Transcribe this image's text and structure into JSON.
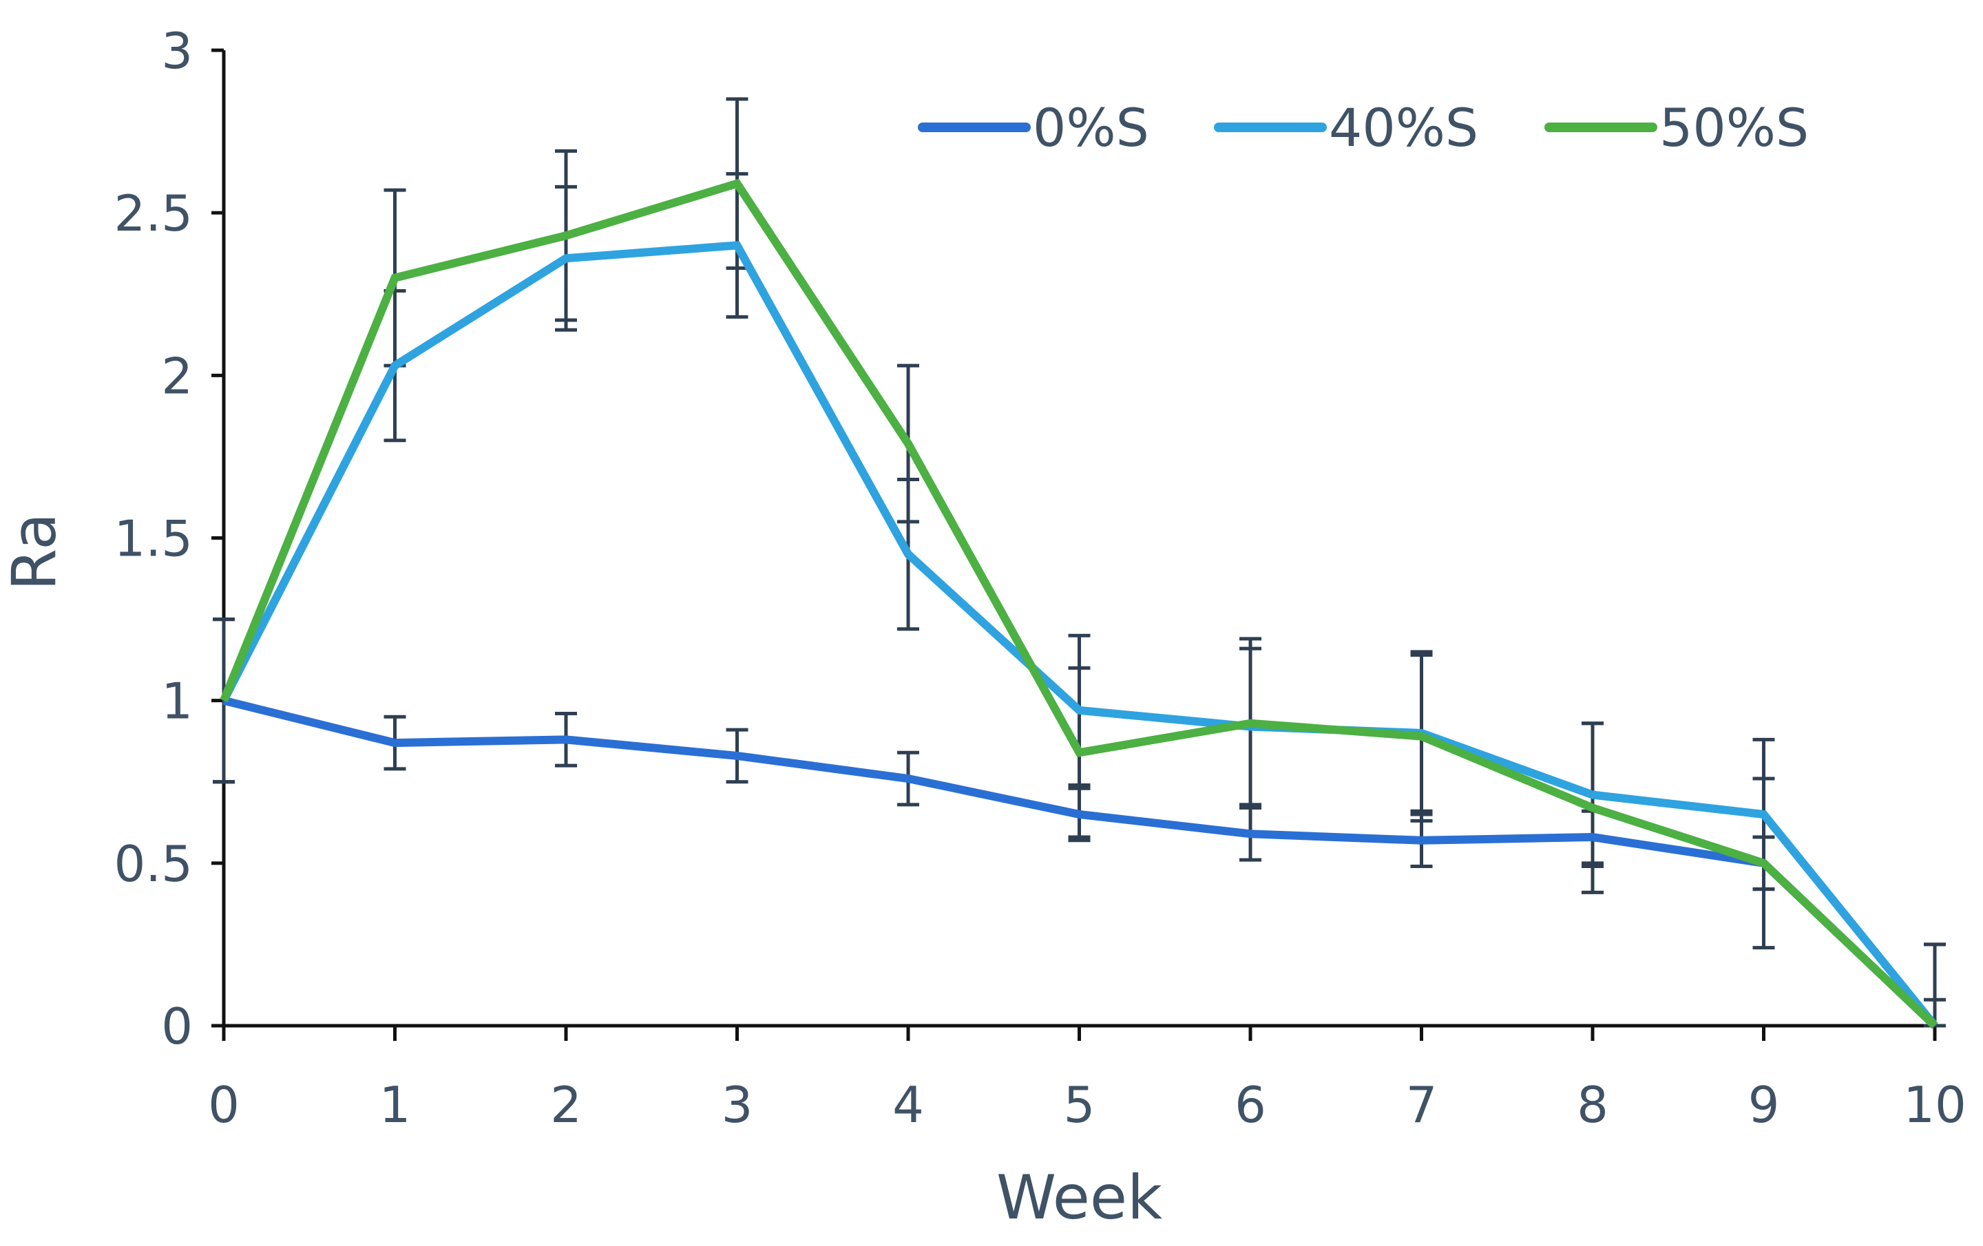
{
  "chart_data": {
    "type": "line",
    "title": "",
    "xlabel": "Week",
    "ylabel": "Ra",
    "x": [
      0,
      1,
      2,
      3,
      4,
      5,
      6,
      7,
      8,
      9,
      10
    ],
    "x_tick_labels": [
      "0",
      "1",
      "2",
      "3",
      "4",
      "5",
      "6",
      "7",
      "8",
      "9",
      "10"
    ],
    "xlim": [
      0,
      10
    ],
    "ylim": [
      0,
      3
    ],
    "y_ticks": [
      0,
      0.5,
      1,
      1.5,
      2,
      2.5,
      3
    ],
    "y_tick_labels": [
      "0",
      "0.5",
      "1",
      "1.5",
      "2",
      "2.5",
      "3"
    ],
    "grid": false,
    "legend_position": "top-right",
    "series": [
      {
        "name": "0%S",
        "color": "#2a6fd4",
        "values": [
          1.0,
          0.87,
          0.88,
          0.83,
          0.76,
          0.65,
          0.59,
          0.57,
          0.58,
          0.5,
          0.0
        ],
        "error": [
          0.25,
          0.08,
          0.08,
          0.08,
          0.08,
          0.08,
          0.08,
          0.08,
          0.08,
          0.08,
          0.08
        ]
      },
      {
        "name": "40%S",
        "color": "#2ea3df",
        "values": [
          1.0,
          2.03,
          2.36,
          2.4,
          1.45,
          0.97,
          0.92,
          0.9,
          0.71,
          0.65,
          0.0
        ],
        "error": [
          0.25,
          0.23,
          0.22,
          0.22,
          0.23,
          0.23,
          0.24,
          0.24,
          0.22,
          0.23,
          0.25
        ]
      },
      {
        "name": "50%S",
        "color": "#4cb043",
        "values": [
          1.0,
          2.3,
          2.43,
          2.59,
          1.79,
          0.84,
          0.93,
          0.89,
          0.67,
          0.5,
          0.0
        ],
        "error": [
          0.25,
          0.27,
          0.26,
          0.26,
          0.24,
          0.26,
          0.26,
          0.26,
          0.26,
          0.26,
          0.25
        ]
      }
    ]
  }
}
